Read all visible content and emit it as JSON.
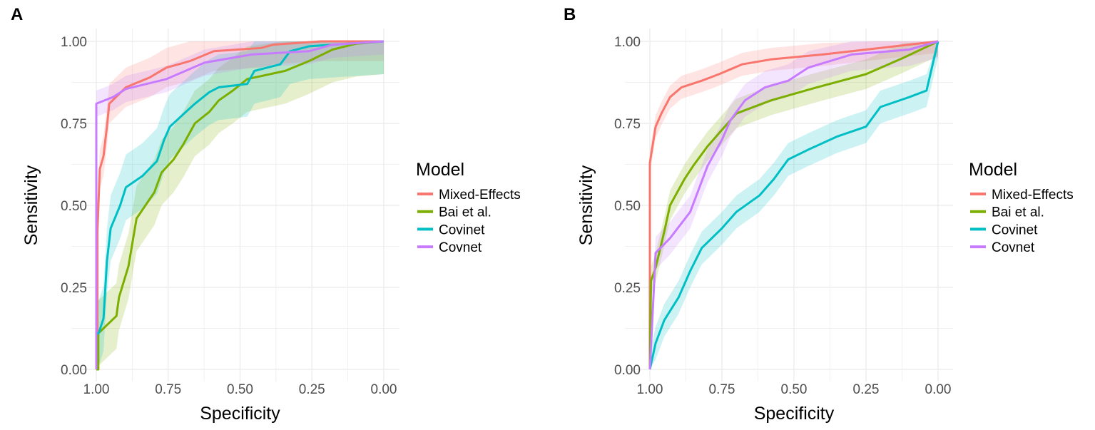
{
  "chart_data": [
    {
      "type": "line",
      "panel_label": "A",
      "xlabel": "Specificity",
      "ylabel": "Sensitivity",
      "xlim": [
        1,
        0
      ],
      "ylim": [
        0,
        1
      ],
      "x_ticks": [
        "1.00",
        "0.75",
        "0.50",
        "0.25",
        "0.00"
      ],
      "y_ticks": [
        "0.00",
        "0.25",
        "0.50",
        "0.75",
        "1.00"
      ],
      "grid": true,
      "legend_title": "Model",
      "legend_position": "right",
      "series": [
        {
          "name": "Mixed-Effects",
          "color": "#F8766D",
          "ci_halfwidth": 0.06,
          "points": [
            [
              1,
              0
            ],
            [
              0.996,
              0
            ],
            [
              0.996,
              0.42
            ],
            [
              0.988,
              0.61
            ],
            [
              0.975,
              0.65
            ],
            [
              0.963,
              0.74
            ],
            [
              0.955,
              0.81
            ],
            [
              0.897,
              0.86
            ],
            [
              0.814,
              0.89
            ],
            [
              0.756,
              0.92
            ],
            [
              0.674,
              0.94
            ],
            [
              0.591,
              0.97
            ],
            [
              0.426,
              0.98
            ],
            [
              0.384,
              0.99
            ],
            [
              0.219,
              1.0
            ],
            [
              0,
              1
            ]
          ]
        },
        {
          "name": "Bai et al.",
          "color": "#7CAE00",
          "ci_halfwidth": 0.1,
          "points": [
            [
              1,
              0
            ],
            [
              0.993,
              0
            ],
            [
              0.993,
              0.11
            ],
            [
              0.93,
              0.163
            ],
            [
              0.921,
              0.22
            ],
            [
              0.888,
              0.315
            ],
            [
              0.86,
              0.46
            ],
            [
              0.798,
              0.54
            ],
            [
              0.773,
              0.6
            ],
            [
              0.731,
              0.64
            ],
            [
              0.698,
              0.685
            ],
            [
              0.657,
              0.75
            ],
            [
              0.607,
              0.785
            ],
            [
              0.574,
              0.82
            ],
            [
              0.525,
              0.85
            ],
            [
              0.475,
              0.885
            ],
            [
              0.343,
              0.91
            ],
            [
              0.26,
              0.94
            ],
            [
              0.178,
              0.975
            ],
            [
              0.095,
              0.993
            ],
            [
              0,
              1
            ]
          ]
        },
        {
          "name": "Covinet",
          "color": "#00BFC4",
          "ci_halfwidth": 0.1,
          "points": [
            [
              1,
              0
            ],
            [
              1,
              0.11
            ],
            [
              0.992,
              0.11
            ],
            [
              0.975,
              0.155
            ],
            [
              0.963,
              0.33
            ],
            [
              0.95,
              0.43
            ],
            [
              0.917,
              0.5
            ],
            [
              0.897,
              0.555
            ],
            [
              0.839,
              0.59
            ],
            [
              0.789,
              0.635
            ],
            [
              0.764,
              0.7
            ],
            [
              0.744,
              0.74
            ],
            [
              0.707,
              0.77
            ],
            [
              0.657,
              0.81
            ],
            [
              0.607,
              0.845
            ],
            [
              0.574,
              0.86
            ],
            [
              0.475,
              0.87
            ],
            [
              0.45,
              0.91
            ],
            [
              0.36,
              0.93
            ],
            [
              0.326,
              0.97
            ],
            [
              0.26,
              0.985
            ],
            [
              0,
              1
            ]
          ]
        },
        {
          "name": "Covnet",
          "color": "#C77CFF",
          "ci_halfwidth": 0.04,
          "points": [
            [
              1,
              0
            ],
            [
              1,
              0.81
            ],
            [
              0.942,
              0.83
            ],
            [
              0.897,
              0.855
            ],
            [
              0.756,
              0.885
            ],
            [
              0.624,
              0.935
            ],
            [
              0.459,
              0.96
            ],
            [
              0.26,
              0.97
            ],
            [
              0.178,
              0.99
            ],
            [
              0,
              1
            ]
          ]
        }
      ]
    },
    {
      "type": "line",
      "panel_label": "B",
      "xlabel": "Specificity",
      "ylabel": "Sensitivity",
      "xlim": [
        1,
        0
      ],
      "ylim": [
        0,
        1
      ],
      "x_ticks": [
        "1.00",
        "0.75",
        "0.50",
        "0.25",
        "0.00"
      ],
      "y_ticks": [
        "0.00",
        "0.25",
        "0.50",
        "0.75",
        "1.00"
      ],
      "grid": true,
      "legend_title": "Model",
      "legend_position": "right",
      "series": [
        {
          "name": "Mixed-Effects",
          "color": "#F8766D",
          "ci_halfwidth": 0.035,
          "points": [
            [
              1,
              0
            ],
            [
              1,
              0.63
            ],
            [
              0.98,
              0.74
            ],
            [
              0.96,
              0.78
            ],
            [
              0.93,
              0.83
            ],
            [
              0.89,
              0.86
            ],
            [
              0.82,
              0.88
            ],
            [
              0.76,
              0.9
            ],
            [
              0.68,
              0.93
            ],
            [
              0.58,
              0.945
            ],
            [
              0.4,
              0.96
            ],
            [
              0.2,
              0.98
            ],
            [
              0,
              1
            ]
          ]
        },
        {
          "name": "Bai et al.",
          "color": "#7CAE00",
          "ci_halfwidth": 0.045,
          "points": [
            [
              1,
              0
            ],
            [
              0.996,
              0.27
            ],
            [
              0.98,
              0.31
            ],
            [
              0.95,
              0.42
            ],
            [
              0.93,
              0.5
            ],
            [
              0.88,
              0.58
            ],
            [
              0.85,
              0.62
            ],
            [
              0.8,
              0.68
            ],
            [
              0.76,
              0.72
            ],
            [
              0.7,
              0.78
            ],
            [
              0.58,
              0.82
            ],
            [
              0.42,
              0.86
            ],
            [
              0.25,
              0.9
            ],
            [
              0.12,
              0.95
            ],
            [
              0,
              1
            ]
          ]
        },
        {
          "name": "Covinet",
          "color": "#00BFC4",
          "ci_halfwidth": 0.05,
          "points": [
            [
              1,
              0
            ],
            [
              0.98,
              0.08
            ],
            [
              0.95,
              0.15
            ],
            [
              0.9,
              0.22
            ],
            [
              0.86,
              0.3
            ],
            [
              0.82,
              0.37
            ],
            [
              0.75,
              0.43
            ],
            [
              0.7,
              0.48
            ],
            [
              0.62,
              0.53
            ],
            [
              0.57,
              0.58
            ],
            [
              0.52,
              0.64
            ],
            [
              0.45,
              0.67
            ],
            [
              0.35,
              0.71
            ],
            [
              0.25,
              0.74
            ],
            [
              0.2,
              0.8
            ],
            [
              0.1,
              0.83
            ],
            [
              0.04,
              0.85
            ],
            [
              0,
              1
            ]
          ]
        },
        {
          "name": "Covnet",
          "color": "#C77CFF",
          "ci_halfwidth": 0.05,
          "points": [
            [
              1,
              0
            ],
            [
              0.98,
              0.355
            ],
            [
              0.93,
              0.4
            ],
            [
              0.86,
              0.48
            ],
            [
              0.83,
              0.55
            ],
            [
              0.8,
              0.62
            ],
            [
              0.75,
              0.7
            ],
            [
              0.72,
              0.76
            ],
            [
              0.67,
              0.82
            ],
            [
              0.6,
              0.86
            ],
            [
              0.52,
              0.88
            ],
            [
              0.45,
              0.92
            ],
            [
              0.3,
              0.96
            ],
            [
              0.1,
              0.975
            ],
            [
              0,
              1
            ]
          ]
        }
      ]
    }
  ]
}
